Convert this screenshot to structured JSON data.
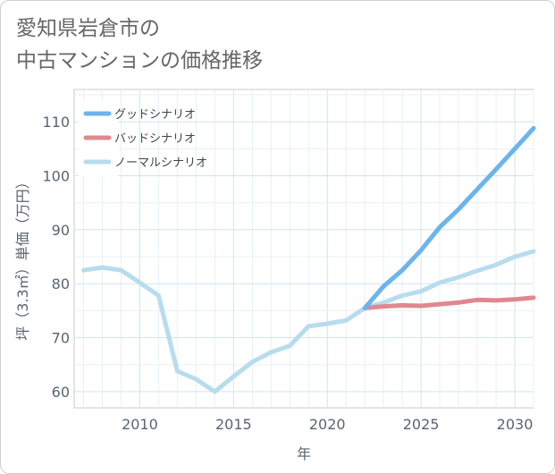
{
  "title": {
    "line1": "愛知県岩倉市の",
    "line2": "中古マンションの価格推移"
  },
  "chart_data": {
    "type": "line",
    "xlabel": "年",
    "ylabel": "坪（3.3㎡）単価（万円）",
    "xlim": [
      2006.5,
      2031
    ],
    "ylim": [
      57,
      116
    ],
    "xticks": [
      2010,
      2015,
      2020,
      2025,
      2030
    ],
    "yticks": [
      60,
      70,
      80,
      90,
      100,
      110
    ],
    "grid": true,
    "legend_position": "top-left",
    "series": [
      {
        "name": "グッドシナリオ",
        "color": "#6cb4ec",
        "x": [
          2022,
          2023,
          2024,
          2025,
          2026,
          2027,
          2028,
          2029,
          2030,
          2031
        ],
        "y": [
          75.5,
          79.5,
          82.5,
          86.2,
          90.5,
          93.8,
          97.5,
          101.2,
          105.0,
          108.8
        ]
      },
      {
        "name": "バッドシナリオ",
        "color": "#e0888f",
        "x": [
          2022,
          2023,
          2024,
          2025,
          2026,
          2027,
          2028,
          2029,
          2030,
          2031
        ],
        "y": [
          75.5,
          75.8,
          76.0,
          75.9,
          76.2,
          76.5,
          77.0,
          76.9,
          77.1,
          77.4
        ]
      },
      {
        "name": "ノーマルシナリオ",
        "color": "#b7dcee",
        "x": [
          2007,
          2008,
          2009,
          2010,
          2011,
          2012,
          2013,
          2014,
          2015,
          2016,
          2017,
          2018,
          2019,
          2020,
          2021,
          2022,
          2023,
          2024,
          2025,
          2026,
          2027,
          2028,
          2029,
          2030,
          2031
        ],
        "y": [
          82.5,
          83.0,
          82.5,
          80.2,
          77.8,
          63.8,
          62.3,
          60.0,
          62.8,
          65.5,
          67.3,
          68.5,
          72.1,
          72.6,
          73.2,
          75.5,
          76.5,
          77.8,
          78.6,
          80.2,
          81.2,
          82.4,
          83.5,
          85.0,
          86.0
        ]
      }
    ]
  }
}
